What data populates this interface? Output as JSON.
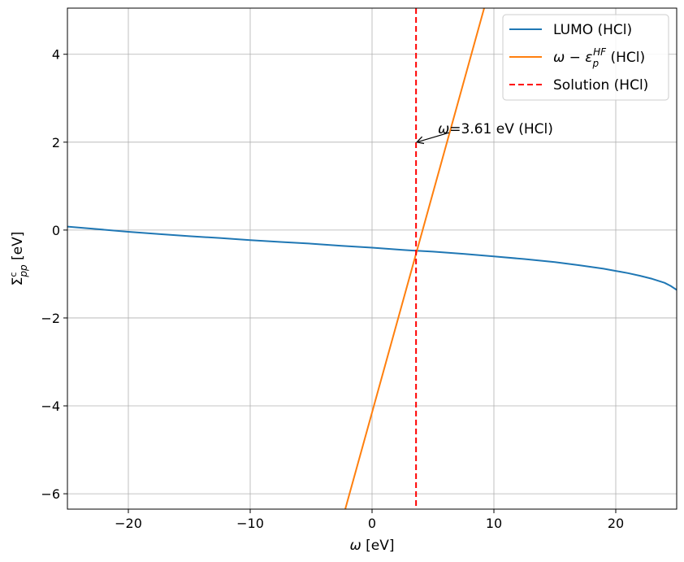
{
  "chart_data": {
    "type": "line",
    "xlabel_pre": "ω",
    "xlabel_post": " [eV]",
    "ylabel_pre": "Σ",
    "ylabel_sup": "c",
    "ylabel_sub": "pp",
    "ylabel_post": " [eV]",
    "xlim": [
      -25,
      25
    ],
    "ylim": [
      -6.35,
      5.05
    ],
    "xticks": [
      -20,
      -10,
      0,
      10,
      20
    ],
    "yticks": [
      -6,
      -4,
      -2,
      0,
      2,
      4
    ],
    "xtick_labels": [
      "−20",
      "−10",
      "0",
      "10",
      "20"
    ],
    "ytick_labels": [
      "−6",
      "−4",
      "−2",
      "0",
      "2",
      "4"
    ],
    "grid": true,
    "legend_position": "top-right",
    "series": [
      {
        "name": "LUMO (HCl)",
        "color": "#1f77b4",
        "x": [
          -25,
          -22.5,
          -20,
          -17.5,
          -15,
          -12.5,
          -10,
          -7.5,
          -5,
          -2.5,
          0,
          2.5,
          3.61,
          5,
          7.5,
          10,
          12.5,
          15,
          17,
          19,
          20,
          21,
          22,
          23,
          24,
          24.5,
          25
        ],
        "y": [
          0.08,
          0.02,
          -0.04,
          -0.09,
          -0.14,
          -0.18,
          -0.23,
          -0.27,
          -0.31,
          -0.36,
          -0.4,
          -0.45,
          -0.47,
          -0.49,
          -0.54,
          -0.6,
          -0.66,
          -0.73,
          -0.8,
          -0.88,
          -0.93,
          -0.98,
          -1.04,
          -1.11,
          -1.2,
          -1.27,
          -1.36
        ]
      },
      {
        "name": "ω − ε_p^HF (HCl)",
        "name_pre": "ω − ε",
        "name_sub": "p",
        "name_sup": "HF",
        "name_post": " (HCl)",
        "color": "#ff7f0e",
        "x": [
          -2.2,
          9.2
        ],
        "y": [
          -6.35,
          5.05
        ]
      },
      {
        "name": "Solution (HCl)",
        "color": "#ff0000",
        "dashed": true,
        "vertical_x": 3.61
      }
    ],
    "annotation": {
      "text_pre": "ω",
      "text_post": "=3.61 eV (HCl)",
      "point": [
        3.61,
        2.0
      ],
      "text_pos": [
        4.6,
        2.18
      ]
    }
  }
}
